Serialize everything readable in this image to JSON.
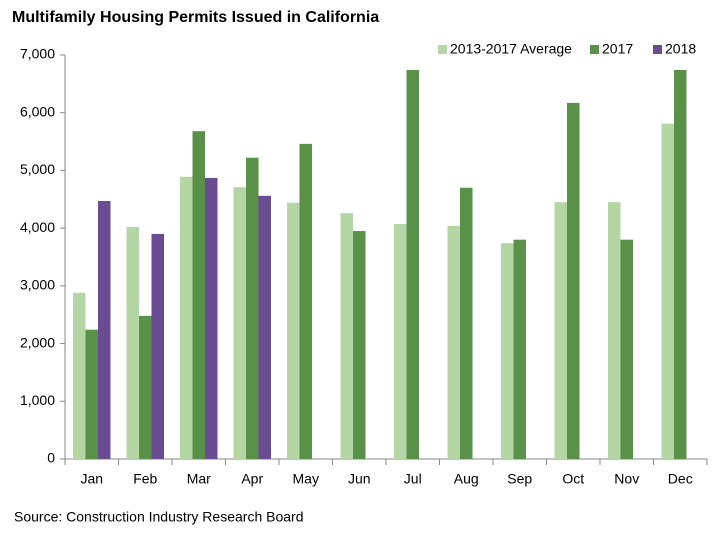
{
  "chart_data": {
    "type": "bar",
    "title": "Multifamily Housing Permits Issued in California",
    "source": "Source: Construction Industry Research Board",
    "categories": [
      "Jan",
      "Feb",
      "Mar",
      "Apr",
      "May",
      "Jun",
      "Jul",
      "Aug",
      "Sep",
      "Oct",
      "Nov",
      "Dec"
    ],
    "series": [
      {
        "name": "2013-2017 Average",
        "color": "#b3d6a4",
        "values": [
          2880,
          4020,
          4890,
          4710,
          4440,
          4260,
          4070,
          4040,
          3740,
          4450,
          4450,
          5810
        ]
      },
      {
        "name": "2017",
        "color": "#5a9148",
        "values": [
          2240,
          2480,
          5680,
          5220,
          5460,
          3950,
          6740,
          4700,
          3800,
          6170,
          3800,
          6740
        ]
      },
      {
        "name": "2018",
        "color": "#6a4c93",
        "values": [
          4470,
          3900,
          4870,
          4560,
          null,
          null,
          null,
          null,
          null,
          null,
          null,
          null
        ]
      }
    ],
    "ylim": [
      0,
      7000
    ],
    "yticks": [
      0,
      {
        "value": 1000,
        "label": "1,000"
      },
      {
        "value": 2000,
        "label": "2,000"
      },
      {
        "value": 3000,
        "label": "3,000"
      },
      {
        "value": 4000,
        "label": "4,000"
      },
      {
        "value": 5000,
        "label": "5,000"
      },
      {
        "value": 6000,
        "label": "6,000"
      },
      {
        "value": 7000,
        "label": "7,000"
      }
    ],
    "legend": "top-right"
  }
}
